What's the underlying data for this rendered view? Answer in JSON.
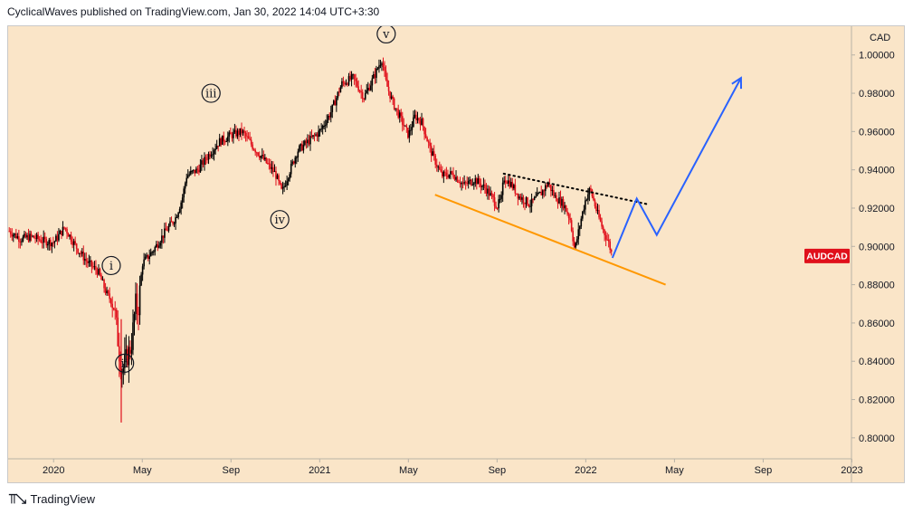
{
  "header": {
    "text": "CyclicalWaves published on TradingView.com, Jan 30, 2022 14:04 UTC+3:30"
  },
  "footer": {
    "logo_icon": "tradingview-logo-icon",
    "text": "TradingView"
  },
  "colors": {
    "background": "#fae5c8",
    "candle_up": "#000000",
    "candle_down": "#e0101b",
    "support_line": "#ff9800",
    "resistance_line": "#000000",
    "projection": "#2962ff",
    "price_label_bg": "#e0101b"
  },
  "chart_data": {
    "type": "candlestick",
    "symbol": "AUDCAD",
    "price_label": "AUDCAD",
    "last_price": 0.895,
    "currency_label": "CAD",
    "y_ticks": [
      "0.80000",
      "0.82000",
      "0.84000",
      "0.86000",
      "0.88000",
      "0.90000",
      "0.92000",
      "0.94000",
      "0.96000",
      "0.98000",
      "1.00000"
    ],
    "ylim": [
      0.79,
      1.015
    ],
    "x_ticks": [
      {
        "label": "2020",
        "t": 0.0
      },
      {
        "label": "May",
        "t": 4.0
      },
      {
        "label": "Sep",
        "t": 8.0
      },
      {
        "label": "2021",
        "t": 12.0
      },
      {
        "label": "May",
        "t": 16.0
      },
      {
        "label": "Sep",
        "t": 20.0
      },
      {
        "label": "2022",
        "t": 24.0
      },
      {
        "label": "May",
        "t": 28.0
      },
      {
        "label": "Sep",
        "t": 32.0
      },
      {
        "label": "2023",
        "t": 36.0
      }
    ],
    "xlim": [
      -2.05,
      35.9
    ],
    "price_path": [
      [
        -2.0,
        0.908
      ],
      [
        -1.5,
        0.904
      ],
      [
        -1.0,
        0.905
      ],
      [
        -0.5,
        0.903
      ],
      [
        0.0,
        0.902
      ],
      [
        0.5,
        0.91
      ],
      [
        1.0,
        0.9
      ],
      [
        1.5,
        0.892
      ],
      [
        2.0,
        0.887
      ],
      [
        2.4,
        0.875
      ],
      [
        2.7,
        0.87
      ],
      [
        2.8,
        0.862
      ],
      [
        3.0,
        0.84
      ],
      [
        3.1,
        0.835
      ],
      [
        3.3,
        0.842
      ],
      [
        3.5,
        0.848
      ],
      [
        3.7,
        0.87
      ],
      [
        3.8,
        0.865
      ],
      [
        4.0,
        0.891
      ],
      [
        4.5,
        0.898
      ],
      [
        5.0,
        0.907
      ],
      [
        5.5,
        0.915
      ],
      [
        5.8,
        0.925
      ],
      [
        6.0,
        0.937
      ],
      [
        6.5,
        0.94
      ],
      [
        7.0,
        0.948
      ],
      [
        7.5,
        0.955
      ],
      [
        8.0,
        0.958
      ],
      [
        8.5,
        0.96
      ],
      [
        9.0,
        0.952
      ],
      [
        9.5,
        0.945
      ],
      [
        10.0,
        0.938
      ],
      [
        10.3,
        0.928
      ],
      [
        10.5,
        0.935
      ],
      [
        11.0,
        0.95
      ],
      [
        11.5,
        0.955
      ],
      [
        12.0,
        0.96
      ],
      [
        12.5,
        0.97
      ],
      [
        13.0,
        0.985
      ],
      [
        13.5,
        0.988
      ],
      [
        14.0,
        0.978
      ],
      [
        14.3,
        0.985
      ],
      [
        14.5,
        0.99
      ],
      [
        14.8,
        0.998
      ],
      [
        15.0,
        0.985
      ],
      [
        15.3,
        0.975
      ],
      [
        15.6,
        0.968
      ],
      [
        16.0,
        0.958
      ],
      [
        16.3,
        0.968
      ],
      [
        16.6,
        0.965
      ],
      [
        17.0,
        0.95
      ],
      [
        17.5,
        0.937
      ],
      [
        18.0,
        0.938
      ],
      [
        18.5,
        0.932
      ],
      [
        19.0,
        0.935
      ],
      [
        19.5,
        0.93
      ],
      [
        19.8,
        0.925
      ],
      [
        20.0,
        0.921
      ],
      [
        20.2,
        0.925
      ],
      [
        20.3,
        0.936
      ],
      [
        20.6,
        0.933
      ],
      [
        21.0,
        0.926
      ],
      [
        21.5,
        0.922
      ],
      [
        22.0,
        0.928
      ],
      [
        22.3,
        0.933
      ],
      [
        22.6,
        0.926
      ],
      [
        23.0,
        0.922
      ],
      [
        23.3,
        0.914
      ],
      [
        23.5,
        0.898
      ],
      [
        23.8,
        0.915
      ],
      [
        24.0,
        0.925
      ],
      [
        24.2,
        0.93
      ],
      [
        24.5,
        0.918
      ],
      [
        24.8,
        0.908
      ],
      [
        25.0,
        0.903
      ],
      [
        25.2,
        0.895
      ]
    ],
    "waves": [
      {
        "label": "i",
        "t": 2.6,
        "price": 0.89
      },
      {
        "label": "ii",
        "t": 3.2,
        "price": 0.839
      },
      {
        "label": "iii",
        "t": 7.1,
        "price": 0.98
      },
      {
        "label": "iv",
        "t": 10.2,
        "price": 0.914
      },
      {
        "label": "v",
        "t": 15.0,
        "price": 1.011
      }
    ],
    "support_line": [
      [
        17.2,
        0.927
      ],
      [
        27.6,
        0.88
      ]
    ],
    "resistance_line": [
      [
        20.3,
        0.938
      ],
      [
        26.8,
        0.922
      ]
    ],
    "projection_path": [
      [
        25.2,
        0.894
      ],
      [
        26.3,
        0.925
      ],
      [
        27.2,
        0.906
      ],
      [
        31.0,
        0.988
      ]
    ],
    "grid": false,
    "legend": "none"
  }
}
